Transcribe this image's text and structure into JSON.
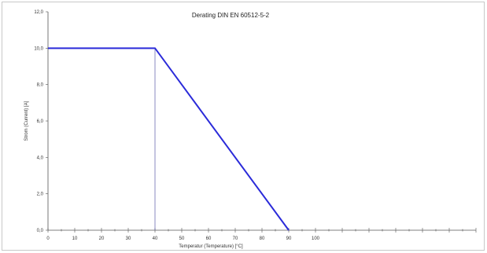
{
  "chart_data": {
    "type": "line",
    "title": "Derating DIN EN 60512-5-2",
    "xlabel": "Temperatur (Temperature) [°C]",
    "ylabel": "Strom (Current) [A]",
    "xlim": [
      0,
      160
    ],
    "ylim": [
      0,
      12
    ],
    "x_tick_labels": [
      0,
      10,
      20,
      30,
      40,
      50,
      60,
      70,
      80,
      90,
      100
    ],
    "y_tick_labels": [
      "0,0",
      "2,0",
      "4,0",
      "6,0",
      "8,0",
      "10,0",
      "12,0"
    ],
    "y_tick_values": [
      0,
      2,
      4,
      6,
      8,
      10,
      12
    ],
    "series": [
      {
        "x": [
          0,
          40,
          90
        ],
        "y": [
          10,
          10,
          0
        ]
      }
    ],
    "reference_line": {
      "x": 40,
      "y": [
        0,
        10
      ]
    },
    "grid": false,
    "legend": "none",
    "colors": {
      "series": "#2b2bd9",
      "reference": "#5a5aa8",
      "axis": "#555555",
      "text": "#333333"
    }
  }
}
